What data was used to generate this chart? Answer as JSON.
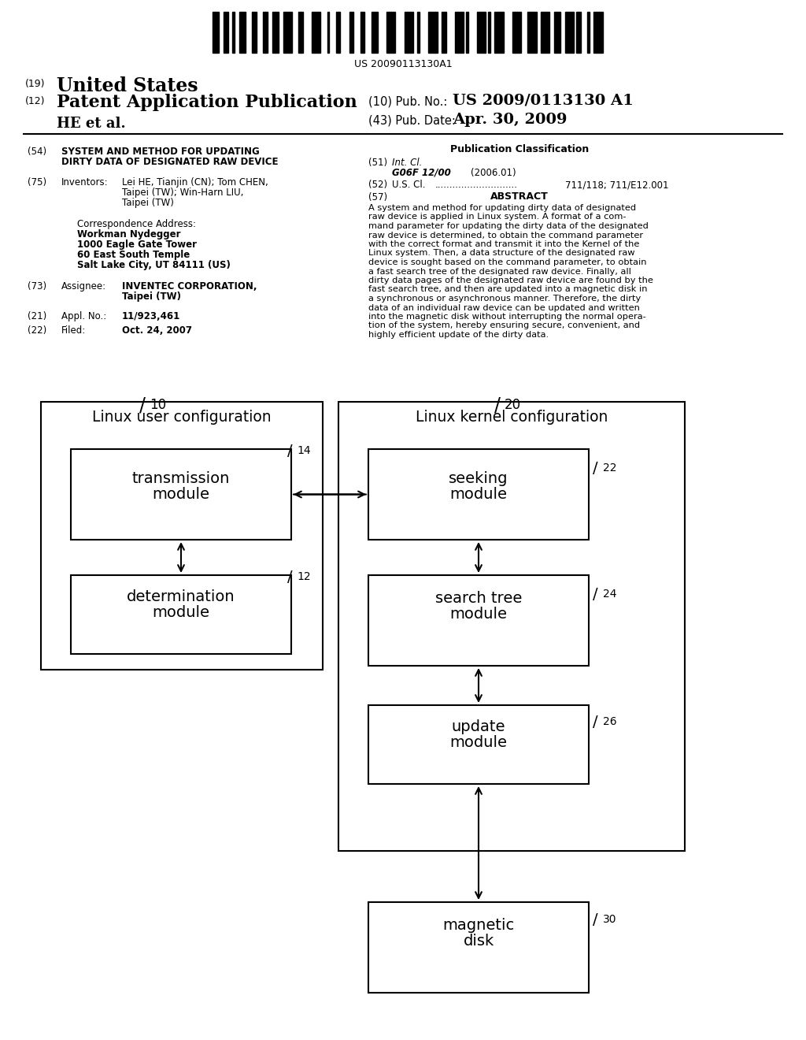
{
  "bg_color": "#ffffff",
  "barcode_text": "US 20090113130A1",
  "header": {
    "number_19": "(19)",
    "united_states": "United States",
    "number_12": "(12)",
    "patent_app": "Patent Application Publication",
    "he_et_al": "HE et al.",
    "pub_no_label": "(10) Pub. No.:",
    "pub_no_val": "US 2009/0113130 A1",
    "pub_date_label": "(43) Pub. Date:",
    "pub_date_val": "Apr. 30, 2009"
  },
  "left_col": {
    "field_54_label": "(54)",
    "field_54_line1": "SYSTEM AND METHOD FOR UPDATING",
    "field_54_line2": "DIRTY DATA OF DESIGNATED RAW DEVICE",
    "field_75_label": "(75)",
    "field_75_name": "Inventors:",
    "field_75_line1": "Lei HE, Tianjin (CN); Tom CHEN,",
    "field_75_line2": "Taipei (TW); Win-Harn LIU,",
    "field_75_line3": "Taipei (TW)",
    "corr_label": "Correspondence Address:",
    "corr_line1": "Workman Nydegger",
    "corr_line2": "1000 Eagle Gate Tower",
    "corr_line3": "60 East South Temple",
    "corr_line4": "Salt Lake City, UT 84111 (US)",
    "field_73_label": "(73)",
    "field_73_name": "Assignee:",
    "field_73_line1": "INVENTEC CORPORATION,",
    "field_73_line2": "Taipei (TW)",
    "field_21_label": "(21)",
    "field_21_name": "Appl. No.:",
    "field_21_val": "11/923,461",
    "field_22_label": "(22)",
    "field_22_name": "Filed:",
    "field_22_val": "Oct. 24, 2007"
  },
  "right_col": {
    "pub_class_title": "Publication Classification",
    "field_51_label": "(51)",
    "field_51_name": "Int. Cl.",
    "field_51_class": "G06F 12/00",
    "field_51_year": "(2006.01)",
    "field_52_label": "(52)",
    "field_52_name": "U.S. Cl.",
    "field_52_dots": "............................",
    "field_52_val": "711/118; 711/E12.001",
    "field_57_label": "(57)",
    "field_57_name": "ABSTRACT",
    "abstract_lines": [
      "A system and method for updating dirty data of designated",
      "raw device is applied in Linux system. A format of a com-",
      "mand parameter for updating the dirty data of the designated",
      "raw device is determined, to obtain the command parameter",
      "with the correct format and transmit it into the Kernel of the",
      "Linux system. Then, a data structure of the designated raw",
      "device is sought based on the command parameter, to obtain",
      "a fast search tree of the designated raw device. Finally, all",
      "dirty data pages of the designated raw device are found by the",
      "fast search tree, and then are updated into a magnetic disk in",
      "a synchronous or asynchronous manner. Therefore, the dirty",
      "data of an individual raw device can be updated and written",
      "into the magnetic disk without interrupting the normal opera-",
      "tion of the system, hereby ensuring secure, convenient, and",
      "highly efficient update of the dirty data."
    ]
  },
  "diagram": {
    "box10_label": "Linux user configuration",
    "box10_num": "10",
    "box20_label": "Linux kernel configuration",
    "box20_num": "20",
    "box14_line1": "transmission",
    "box14_line2": "module",
    "box14_num": "14",
    "box12_line1": "determination",
    "box12_line2": "module",
    "box12_num": "12",
    "box22_line1": "seeking",
    "box22_line2": "module",
    "box22_num": "22",
    "box24_line1": "search tree",
    "box24_line2": "module",
    "box24_num": "24",
    "box26_line1": "update",
    "box26_line2": "module",
    "box26_num": "26",
    "box30_line1": "magnetic",
    "box30_line2": "disk",
    "box30_num": "30"
  }
}
